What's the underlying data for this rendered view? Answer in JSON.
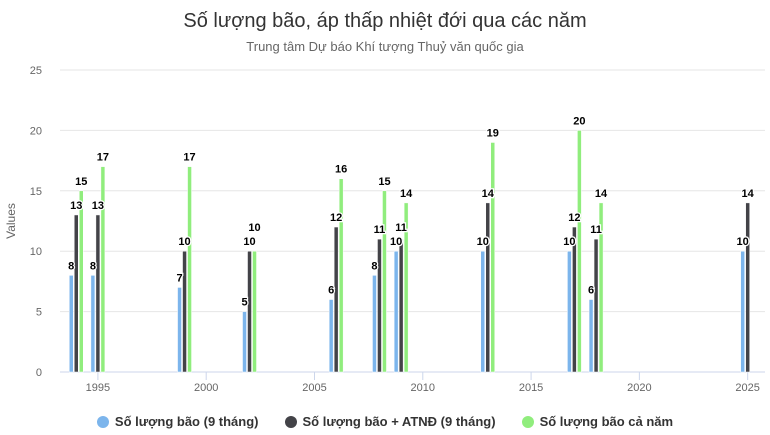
{
  "chart_data": {
    "type": "bar",
    "title": "Số lượng bão, áp thấp nhiệt đới qua các năm",
    "subtitle": "Trung tâm Dự báo Khí tượng Thuỷ văn quốc gia",
    "xlabel": "",
    "ylabel": "Values",
    "ylim": [
      0,
      25
    ],
    "xlim": [
      1993.25,
      2025.8
    ],
    "yticks": [
      "0",
      "5",
      "10",
      "15",
      "20",
      "25"
    ],
    "xticks": [
      "1995",
      "2000",
      "2005",
      "2010",
      "2015",
      "2020",
      "2025"
    ],
    "grid": true,
    "legend_position": "bottom",
    "x": [
      1994,
      1995,
      1999,
      2002,
      2006,
      2008,
      2009,
      2013,
      2017,
      2018,
      2025
    ],
    "series": [
      {
        "name": "Số lượng bão (9 tháng)",
        "color": "#7cb5ec",
        "values": [
          8,
          8,
          7,
          5,
          6,
          8,
          10,
          10,
          10,
          6,
          10
        ]
      },
      {
        "name": "Số lượng bão + ATNĐ (9 tháng)",
        "color": "#434348",
        "values": [
          13,
          13,
          10,
          10,
          12,
          11,
          11,
          14,
          12,
          11,
          14
        ]
      },
      {
        "name": "Số lượng bão cả năm",
        "color": "#90ed7d",
        "values": [
          15,
          17,
          17,
          10,
          16,
          15,
          14,
          19,
          20,
          14,
          null
        ]
      }
    ]
  }
}
